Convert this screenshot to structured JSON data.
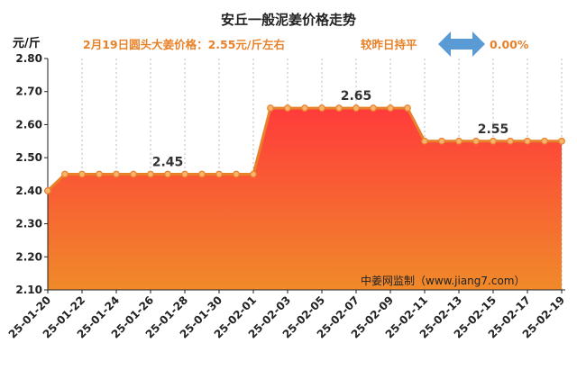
{
  "header": {
    "title": "安丘一般泥姜价格走势",
    "price_note": "2月19日圆头大姜价格：2.55元/斤左右",
    "change_note": "较昨日持平",
    "change_pct": "0.00%"
  },
  "watermark": "中姜网监制（www.jiang7.com）",
  "colors": {
    "line": "#e8822a",
    "fill_top": "#ff3b3b",
    "fill_bottom": "#f08a2a",
    "arrow": "#5b9bd5",
    "accent_text": "#e8822a"
  },
  "chart_data": {
    "type": "area",
    "title": "",
    "ylabel": "元/斤",
    "xlabel": "",
    "ylim": [
      2.1,
      2.8
    ],
    "yticks": [
      "2.10",
      "2.20",
      "2.30",
      "2.40",
      "2.50",
      "2.60",
      "2.70",
      "2.80"
    ],
    "grid": "vertical dashed",
    "x": [
      "25-01-20",
      "25-01-21",
      "25-01-22",
      "25-01-23",
      "25-01-24",
      "25-01-25",
      "25-01-26",
      "25-01-27",
      "25-01-28",
      "25-01-29",
      "25-01-30",
      "25-01-31",
      "25-02-01",
      "25-02-02",
      "25-02-03",
      "25-02-04",
      "25-02-05",
      "25-02-06",
      "25-02-07",
      "25-02-08",
      "25-02-09",
      "25-02-10",
      "25-02-11",
      "25-02-12",
      "25-02-13",
      "25-02-14",
      "25-02-15",
      "25-02-16",
      "25-02-17",
      "25-02-18",
      "25-02-19"
    ],
    "xticks": [
      "25-01-20",
      "25-01-22",
      "25-01-24",
      "25-01-26",
      "25-01-28",
      "25-01-30",
      "25-02-01",
      "25-02-03",
      "25-02-05",
      "25-02-07",
      "25-02-09",
      "25-02-11",
      "25-02-13",
      "25-02-15",
      "25-02-17",
      "25-02-19"
    ],
    "series": [
      {
        "values": [
          2.4,
          2.45,
          2.45,
          2.45,
          2.45,
          2.45,
          2.45,
          2.45,
          2.45,
          2.45,
          2.45,
          2.45,
          2.45,
          2.65,
          2.65,
          2.65,
          2.65,
          2.65,
          2.65,
          2.65,
          2.65,
          2.65,
          2.55,
          2.55,
          2.55,
          2.55,
          2.55,
          2.55,
          2.55,
          2.55,
          2.55
        ]
      }
    ],
    "annotations": [
      {
        "x": "25-01-27",
        "y": 2.45,
        "text": "2.45"
      },
      {
        "x": "25-02-07",
        "y": 2.65,
        "text": "2.65"
      },
      {
        "x": "25-02-15",
        "y": 2.55,
        "text": "2.55"
      }
    ]
  }
}
